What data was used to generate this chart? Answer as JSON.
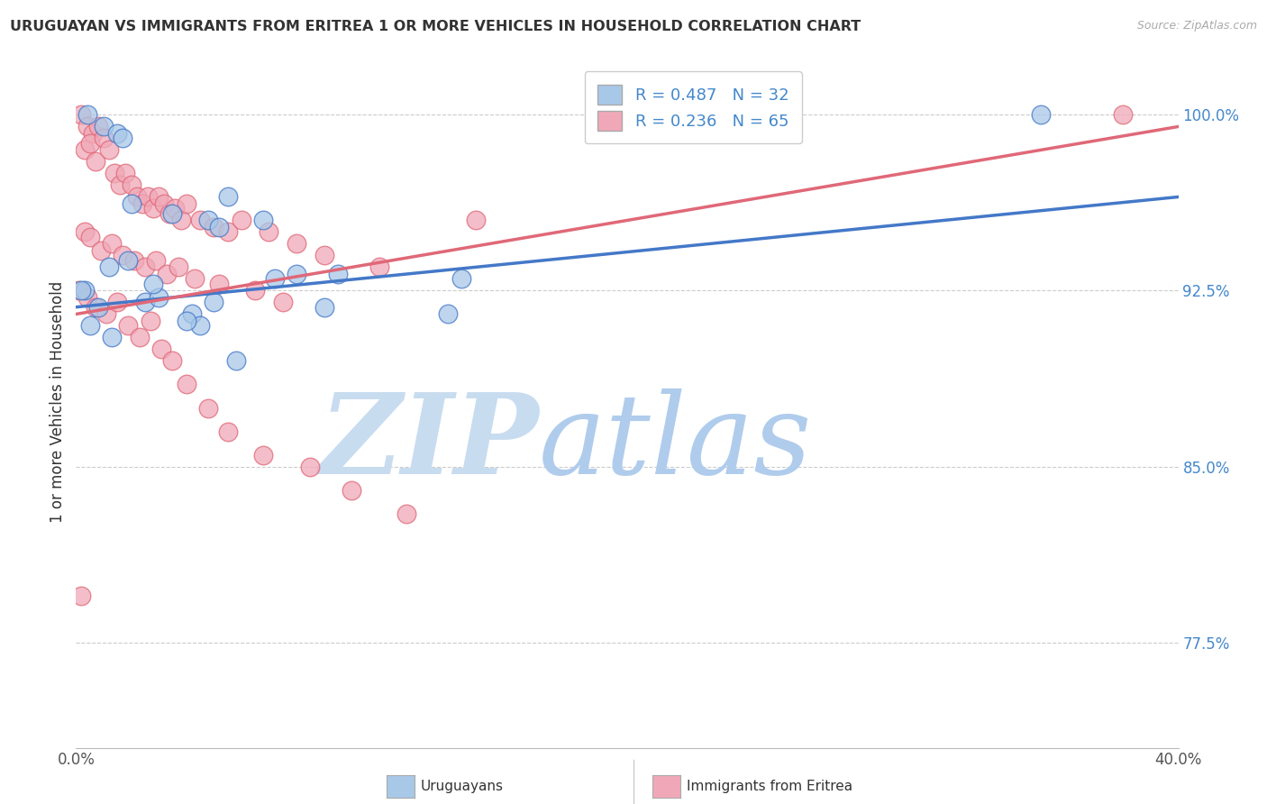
{
  "title": "URUGUAYAN VS IMMIGRANTS FROM ERITREA 1 OR MORE VEHICLES IN HOUSEHOLD CORRELATION CHART",
  "source": "Source: ZipAtlas.com",
  "ylabel": "1 or more Vehicles in Household",
  "x_min": 0.0,
  "x_max": 40.0,
  "y_min": 73.0,
  "y_max": 102.5,
  "x_tick_labels": [
    "0.0%",
    "",
    "",
    "",
    "",
    "",
    "",
    "",
    "40.0%"
  ],
  "x_tick_values": [
    0,
    5,
    10,
    15,
    20,
    25,
    30,
    35,
    40
  ],
  "y_tick_labels": [
    "77.5%",
    "85.0%",
    "92.5%",
    "100.0%"
  ],
  "y_tick_values": [
    77.5,
    85.0,
    92.5,
    100.0
  ],
  "legend_r_blue": "R = 0.487",
  "legend_n_blue": "N = 32",
  "legend_r_pink": "R = 0.236",
  "legend_n_pink": "N = 65",
  "legend_label_blue": "Uruguayans",
  "legend_label_pink": "Immigrants from Eritrea",
  "blue_color": "#a8c8e8",
  "pink_color": "#f0a8b8",
  "blue_line_color": "#4478c8",
  "pink_line_color": "#e06878",
  "watermark_zip": "ZIP",
  "watermark_atlas": "atlas",
  "watermark_color": "#ddeeff",
  "blue_dots_x": [
    0.4,
    1.0,
    1.5,
    1.7,
    2.0,
    3.5,
    4.8,
    5.2,
    5.5,
    6.8,
    9.5,
    14.0,
    0.3,
    0.8,
    1.2,
    1.9,
    2.5,
    3.0,
    4.2,
    4.5,
    5.8,
    7.2,
    8.0,
    9.0,
    13.5,
    35.0,
    0.5,
    1.3,
    2.8,
    4.0,
    5.0,
    0.2
  ],
  "blue_dots_y": [
    100.0,
    99.5,
    99.2,
    99.0,
    96.2,
    95.8,
    95.5,
    95.2,
    96.5,
    95.5,
    93.2,
    93.0,
    92.5,
    91.8,
    93.5,
    93.8,
    92.0,
    92.2,
    91.5,
    91.0,
    89.5,
    93.0,
    93.2,
    91.8,
    91.5,
    100.0,
    91.0,
    90.5,
    92.8,
    91.2,
    92.0,
    92.5
  ],
  "pink_dots_x": [
    0.2,
    0.4,
    0.6,
    0.8,
    0.3,
    0.5,
    0.7,
    1.0,
    1.2,
    1.4,
    1.6,
    1.8,
    2.0,
    2.2,
    2.4,
    2.6,
    2.8,
    3.0,
    3.2,
    3.4,
    3.6,
    3.8,
    4.0,
    4.5,
    5.0,
    5.5,
    6.0,
    7.0,
    8.0,
    9.0,
    11.0,
    14.5,
    0.3,
    0.5,
    0.9,
    1.3,
    1.7,
    2.1,
    2.5,
    2.9,
    3.3,
    3.7,
    4.3,
    5.2,
    6.5,
    7.5,
    0.1,
    0.4,
    0.7,
    1.1,
    1.5,
    1.9,
    2.3,
    2.7,
    3.1,
    3.5,
    4.0,
    4.8,
    5.5,
    6.8,
    8.5,
    10.0,
    12.0,
    38.0,
    0.2
  ],
  "pink_dots_y": [
    100.0,
    99.5,
    99.2,
    99.5,
    98.5,
    98.8,
    98.0,
    99.0,
    98.5,
    97.5,
    97.0,
    97.5,
    97.0,
    96.5,
    96.2,
    96.5,
    96.0,
    96.5,
    96.2,
    95.8,
    96.0,
    95.5,
    96.2,
    95.5,
    95.2,
    95.0,
    95.5,
    95.0,
    94.5,
    94.0,
    93.5,
    95.5,
    95.0,
    94.8,
    94.2,
    94.5,
    94.0,
    93.8,
    93.5,
    93.8,
    93.2,
    93.5,
    93.0,
    92.8,
    92.5,
    92.0,
    92.5,
    92.2,
    91.8,
    91.5,
    92.0,
    91.0,
    90.5,
    91.2,
    90.0,
    89.5,
    88.5,
    87.5,
    86.5,
    85.5,
    85.0,
    84.0,
    83.0,
    100.0,
    79.5
  ]
}
